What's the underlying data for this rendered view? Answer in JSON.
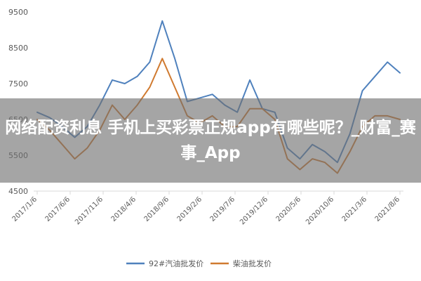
{
  "overlay_title": "网络配资利息 手机上买彩票正规app有哪些呢？_财富_赛事_App",
  "chart_data": {
    "type": "line",
    "title": "",
    "xlabel": "",
    "ylabel": "",
    "ylim": [
      4500,
      9500
    ],
    "yticks": [
      4500,
      5500,
      6500,
      7500,
      8500,
      9500
    ],
    "xtick_labels": [
      "2017/1/6",
      "2017/6/6",
      "2017/11/6",
      "2018/4/6",
      "2018/9/6",
      "2019/2/6",
      "2019/7/6",
      "2019/12/6",
      "2020/5/6",
      "2020/10/6",
      "2021/3/6",
      "2021/8/6"
    ],
    "x": [
      "2017/1",
      "2017/3",
      "2017/5",
      "2017/7",
      "2017/9",
      "2017/11",
      "2018/1",
      "2018/3",
      "2018/5",
      "2018/7",
      "2018/9",
      "2018/10",
      "2018/11",
      "2019/1",
      "2019/3",
      "2019/5",
      "2019/7",
      "2019/9",
      "2019/11",
      "2020/1",
      "2020/3",
      "2020/5",
      "2020/7",
      "2020/9",
      "2020/11",
      "2021/1",
      "2021/3",
      "2021/5",
      "2021/7",
      "2021/8"
    ],
    "legend_position": "bottom",
    "grid": false,
    "series": [
      {
        "name": "92#汽油批发价",
        "color": "#4f81bd",
        "values": [
          6700,
          6550,
          6300,
          6000,
          6300,
          6900,
          7600,
          7500,
          7700,
          8100,
          9250,
          8200,
          7000,
          7100,
          7200,
          6900,
          6700,
          7600,
          6800,
          6700,
          5700,
          5400,
          5800,
          5600,
          5300,
          6100,
          7300,
          7700,
          8100,
          7800
        ]
      },
      {
        "name": "柴油批发价",
        "color": "#d07a30",
        "values": [
          6500,
          6200,
          5800,
          5400,
          5700,
          6200,
          6900,
          6500,
          6900,
          7400,
          8200,
          7400,
          6600,
          6400,
          6600,
          6300,
          6300,
          6800,
          6800,
          6500,
          5400,
          5100,
          5400,
          5300,
          5000,
          5600,
          6300,
          6600,
          6600,
          6500
        ]
      }
    ]
  }
}
